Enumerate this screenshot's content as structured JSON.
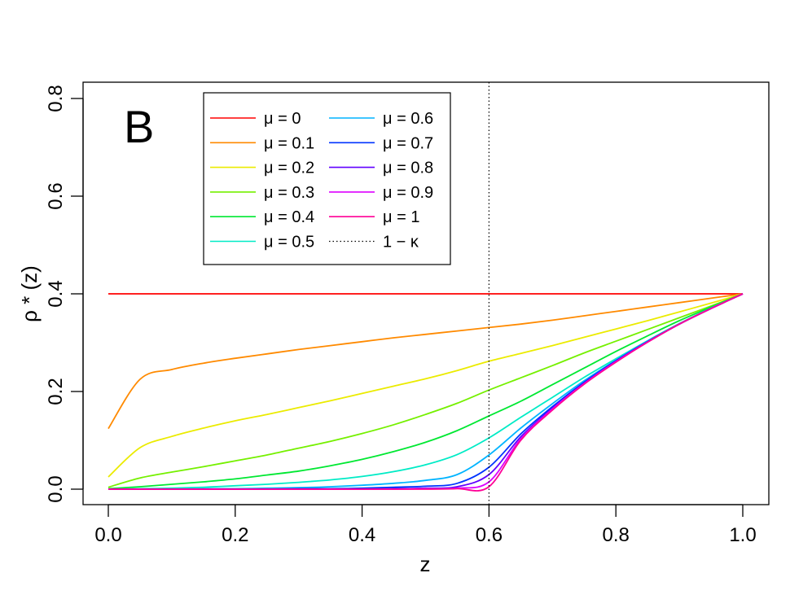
{
  "chart_data": {
    "type": "line",
    "panel_label": "B",
    "xlabel": "z",
    "ylabel": "ρ * (z)",
    "xlim": [
      0.0,
      1.0
    ],
    "ylim": [
      0.0,
      0.8
    ],
    "x_ticks": [
      "0.0",
      "0.2",
      "0.4",
      "0.6",
      "0.8",
      "1.0"
    ],
    "y_ticks": [
      "0.0",
      "0.2",
      "0.4",
      "0.6",
      "0.8"
    ],
    "grid": false,
    "legend_position": "top-left",
    "reference_line": {
      "label": "1 − κ",
      "x": 0.6,
      "style": "dotted",
      "color": "#000000"
    },
    "x": [
      0.0,
      0.05,
      0.1,
      0.15,
      0.2,
      0.25,
      0.3,
      0.35,
      0.4,
      0.45,
      0.5,
      0.55,
      0.6,
      0.65,
      0.7,
      0.75,
      0.8,
      0.85,
      0.9,
      0.95,
      1.0
    ],
    "series": [
      {
        "name": "μ = 0",
        "color": "#FF0000",
        "values": [
          0.4,
          0.4,
          0.4,
          0.4,
          0.4,
          0.4,
          0.4,
          0.4,
          0.4,
          0.4,
          0.4,
          0.4,
          0.4,
          0.4,
          0.4,
          0.4,
          0.4,
          0.4,
          0.4,
          0.4,
          0.4
        ]
      },
      {
        "name": "μ = 0.1",
        "color": "#FF8A00",
        "values": [
          0.124,
          0.225,
          0.245,
          0.258,
          0.268,
          0.277,
          0.286,
          0.294,
          0.302,
          0.31,
          0.317,
          0.324,
          0.331,
          0.338,
          0.346,
          0.355,
          0.364,
          0.373,
          0.382,
          0.391,
          0.4
        ]
      },
      {
        "name": "μ = 0.2",
        "color": "#EBEB00",
        "values": [
          0.025,
          0.085,
          0.108,
          0.125,
          0.14,
          0.153,
          0.167,
          0.181,
          0.196,
          0.211,
          0.226,
          0.243,
          0.262,
          0.278,
          0.294,
          0.311,
          0.328,
          0.345,
          0.363,
          0.381,
          0.4
        ]
      },
      {
        "name": "μ = 0.3",
        "color": "#75F000",
        "values": [
          0.004,
          0.023,
          0.035,
          0.046,
          0.058,
          0.07,
          0.084,
          0.098,
          0.114,
          0.132,
          0.153,
          0.176,
          0.203,
          0.228,
          0.253,
          0.279,
          0.303,
          0.327,
          0.351,
          0.375,
          0.4
        ]
      },
      {
        "name": "μ = 0.4",
        "color": "#00E832",
        "values": [
          0.001,
          0.005,
          0.01,
          0.015,
          0.021,
          0.029,
          0.037,
          0.048,
          0.061,
          0.077,
          0.096,
          0.12,
          0.15,
          0.18,
          0.214,
          0.248,
          0.282,
          0.314,
          0.345,
          0.373,
          0.4
        ]
      },
      {
        "name": "μ = 0.5",
        "color": "#00EBC6",
        "values": [
          0.0,
          0.001,
          0.002,
          0.004,
          0.007,
          0.01,
          0.014,
          0.019,
          0.026,
          0.036,
          0.05,
          0.071,
          0.105,
          0.147,
          0.188,
          0.229,
          0.267,
          0.304,
          0.339,
          0.371,
          0.4
        ]
      },
      {
        "name": "μ = 0.6",
        "color": "#00B4FF",
        "values": [
          0.0,
          0.0,
          0.0,
          0.001,
          0.001,
          0.002,
          0.003,
          0.005,
          0.008,
          0.012,
          0.018,
          0.03,
          0.07,
          0.125,
          0.175,
          0.222,
          0.264,
          0.303,
          0.338,
          0.37,
          0.4
        ]
      },
      {
        "name": "μ = 0.7",
        "color": "#0033FF",
        "values": [
          0.0,
          0.0,
          0.0,
          0.0,
          0.0,
          0.0,
          0.001,
          0.001,
          0.002,
          0.004,
          0.006,
          0.012,
          0.045,
          0.113,
          0.169,
          0.219,
          0.263,
          0.302,
          0.338,
          0.37,
          0.4
        ]
      },
      {
        "name": "μ = 0.8",
        "color": "#6000FF",
        "values": [
          0.0,
          0.0,
          0.0,
          0.0,
          0.0,
          0.0,
          0.0,
          0.0,
          0.0,
          0.001,
          0.002,
          0.005,
          0.03,
          0.107,
          0.166,
          0.217,
          0.262,
          0.302,
          0.338,
          0.37,
          0.4
        ]
      },
      {
        "name": "μ = 0.9",
        "color": "#DD00FF",
        "values": [
          0.0,
          0.0,
          0.0,
          0.0,
          0.0,
          0.0,
          0.0,
          0.0,
          0.0,
          0.0,
          0.001,
          0.002,
          0.015,
          0.103,
          0.164,
          0.216,
          0.261,
          0.301,
          0.338,
          0.37,
          0.4
        ]
      },
      {
        "name": "μ = 1",
        "color": "#FF0096",
        "values": [
          0.0,
          0.0,
          0.0,
          0.0,
          0.0,
          0.0,
          0.0,
          0.0,
          0.0,
          0.0,
          0.0,
          0.001,
          0.005,
          0.1,
          0.162,
          0.215,
          0.26,
          0.301,
          0.338,
          0.37,
          0.4
        ]
      }
    ]
  }
}
